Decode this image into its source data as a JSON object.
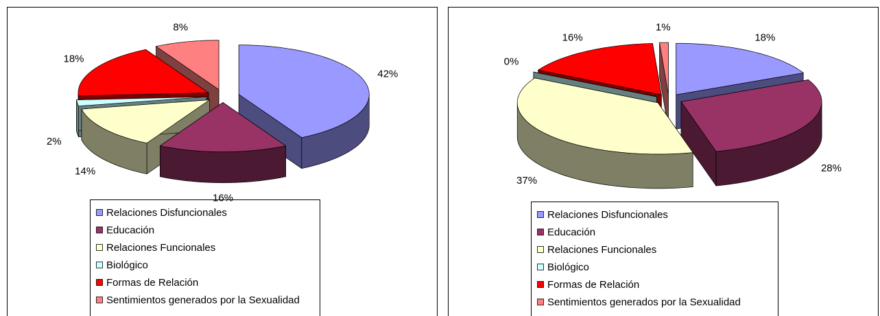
{
  "chart_data": [
    {
      "type": "pie",
      "categories": [
        "Relaciones Disfuncionales",
        "Educación",
        "Relaciones Funcionales",
        "Biológico",
        "Formas de Relación",
        "Sentimientos generados por la Sexualidad"
      ],
      "values": [
        42,
        16,
        14,
        2,
        18,
        8
      ],
      "value_labels": [
        "42%",
        "16%",
        "14%",
        "2%",
        "18%",
        "8%"
      ],
      "colors": [
        "#9999ff",
        "#993366",
        "#ffffcc",
        "#ccffff",
        "#ff0000",
        "#ff8080"
      ],
      "legend": "bottom"
    },
    {
      "type": "pie",
      "categories": [
        "Relaciones Disfuncionales",
        "Educación",
        "Relaciones Funcionales",
        "Biológico",
        "Formas de Relación",
        "Sentimientos generados por la Sexualidad"
      ],
      "values": [
        18,
        28,
        37,
        0,
        16,
        1
      ],
      "value_labels": [
        "18%",
        "28%",
        "37%",
        "0%",
        "16%",
        "1%"
      ],
      "colors": [
        "#9999ff",
        "#993366",
        "#ffffcc",
        "#ccffff",
        "#ff0000",
        "#ff8080"
      ],
      "legend": "bottom"
    }
  ]
}
